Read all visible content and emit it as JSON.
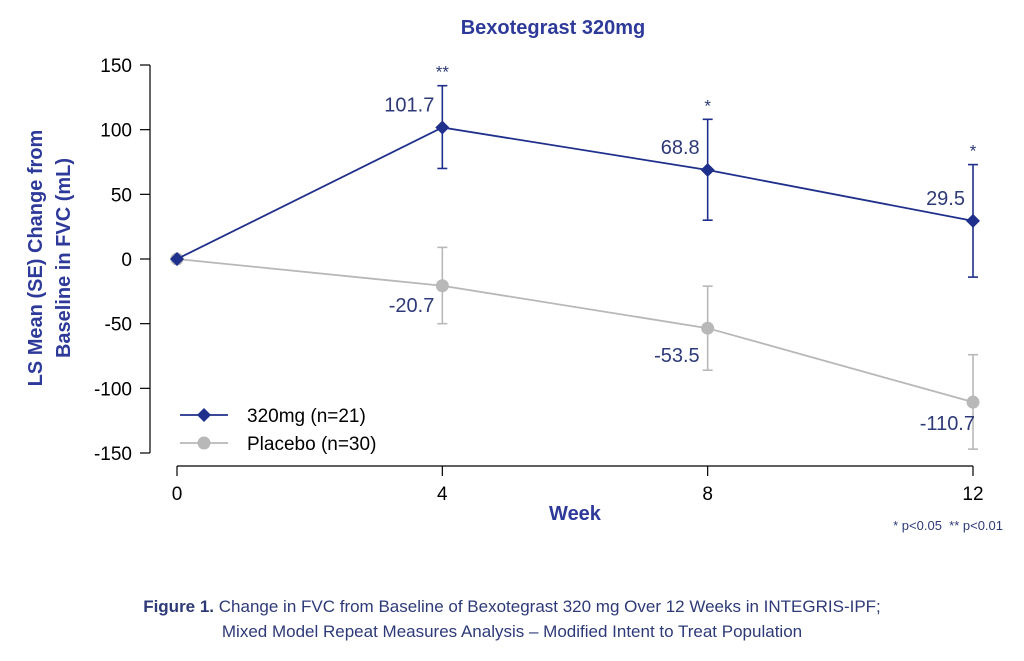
{
  "chart_data": {
    "type": "line",
    "title": "Bexotegrast 320mg",
    "xlabel": "Week",
    "ylabel_lines": [
      "LS Mean (SE) Change from",
      "Baseline in FVC (mL)"
    ],
    "x": [
      0,
      4,
      8,
      12
    ],
    "x_ticks": [
      "0",
      "4",
      "8",
      "12"
    ],
    "y_ticks": [
      "150",
      "100",
      "50",
      "0",
      "-50",
      "-100",
      "-150"
    ],
    "xlim": [
      0,
      12
    ],
    "ylim": [
      -150,
      150
    ],
    "grid": false,
    "legend_position": "bottom-left",
    "series": [
      {
        "name": "320mg (n=21)",
        "color": "#1f2f8c",
        "marker": "diamond",
        "values": [
          0,
          101.7,
          68.8,
          29.5
        ],
        "error_upper": [
          0,
          134,
          108,
          73
        ],
        "error_lower": [
          0,
          70,
          30,
          -14
        ],
        "data_labels": [
          "",
          "101.7",
          "68.8",
          "29.5"
        ],
        "significance": [
          "",
          "**",
          "*",
          "*"
        ]
      },
      {
        "name": "Placebo (n=30)",
        "color": "#b8b8b8",
        "marker": "circle",
        "values": [
          0,
          -20.7,
          -53.5,
          -110.7
        ],
        "error_upper": [
          0,
          9,
          -21,
          -74
        ],
        "error_lower": [
          0,
          -50,
          -86,
          -147
        ],
        "data_labels": [
          "",
          "-20.7",
          "-53.5",
          "-110.7"
        ]
      }
    ],
    "footnote": "* p<0.05  ** p<0.01"
  },
  "caption": {
    "lead": "Figure 1.",
    "line1": " Change in FVC from Baseline of Bexotegrast 320 mg Over 12 Weeks in INTEGRIS-IPF;",
    "line2": "Mixed Model Repeat Measures Analysis – Modified Intent to Treat Population"
  }
}
